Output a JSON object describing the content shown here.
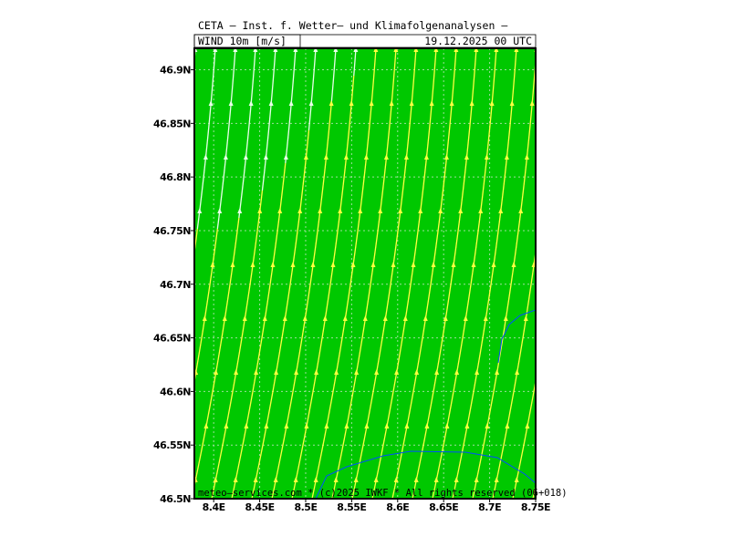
{
  "header": {
    "title": "CETA — Inst. f. Wetter— und Klimafolgenanalysen —",
    "field": "WIND 10m [m/s]",
    "date": "19.12.2025 00 UTC"
  },
  "footer": "meteo—services.com * (c)2025 IWKF * All rights reserved (06+018)",
  "map": {
    "xlim": [
      8.379,
      8.75
    ],
    "ylim": [
      46.5,
      46.92
    ],
    "xticks": [
      {
        "value": 8.4,
        "label": "8.4E"
      },
      {
        "value": 8.45,
        "label": "8.45E"
      },
      {
        "value": 8.5,
        "label": "8.5E"
      },
      {
        "value": 8.55,
        "label": "8.55E"
      },
      {
        "value": 8.6,
        "label": "8.6E"
      },
      {
        "value": 8.65,
        "label": "8.65E"
      },
      {
        "value": 8.7,
        "label": "8.7E"
      },
      {
        "value": 8.75,
        "label": "8.75E"
      }
    ],
    "yticks": [
      {
        "value": 46.5,
        "label": "46.5N"
      },
      {
        "value": 46.55,
        "label": "46.55N"
      },
      {
        "value": 46.6,
        "label": "46.6N"
      },
      {
        "value": 46.65,
        "label": "46.65N"
      },
      {
        "value": 46.7,
        "label": "46.7N"
      },
      {
        "value": 46.75,
        "label": "46.75N"
      },
      {
        "value": 46.8,
        "label": "46.8N"
      },
      {
        "value": 46.85,
        "label": "46.85N"
      },
      {
        "value": 46.9,
        "label": "46.9N"
      }
    ],
    "grid": true
  }
}
